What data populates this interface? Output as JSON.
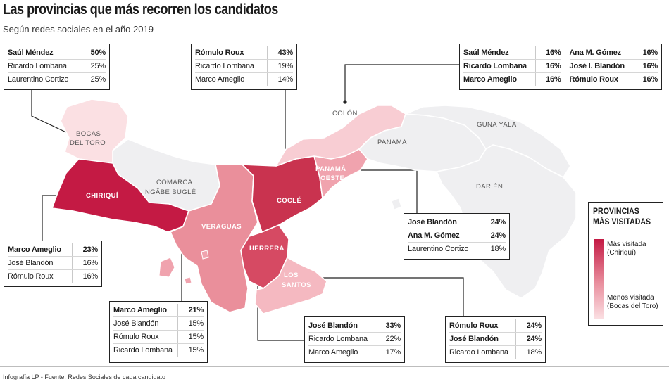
{
  "title": "Las provincias que más recorren los candidatos",
  "subtitle": "Según redes sociales en el año 2019",
  "footer": "Infografía LP - Fuente: Redes Sociales de cada candidato",
  "colors": {
    "most_visited": "#c41a44",
    "least_visited": "#fbe0e3",
    "not_visited": "#efeff1"
  },
  "legend": {
    "title_line1": "PROVINCIAS",
    "title_line2": "MÁS VISITADAS",
    "most_line1": "Más visitada",
    "most_line2": "(Chiriquí)",
    "least_line1": "Menos visitada",
    "least_line2": "(Bocas del Toro)"
  },
  "provinces": {
    "bocas_1": "BOCAS",
    "bocas_2": "DEL TORO",
    "chiriqui": "CHIRIQUÍ",
    "comarca_1": "COMARCA",
    "comarca_2": "NGÄBE BUGLÉ",
    "veraguas": "VERAGUAS",
    "cocle": "COCLÉ",
    "herrera": "HERRERA",
    "los_santos_1": "LOS",
    "los_santos_2": "SANTOS",
    "colon": "COLÓN",
    "panama": "PANAMÁ",
    "panama_oeste_1": "PANAMÁ",
    "panama_oeste_2": "OESTE",
    "guna_yala": "GUNA YALA",
    "darien": "DARIÉN"
  },
  "boxes": {
    "bocas": [
      {
        "name": "Saúl Méndez",
        "pct": "50%"
      },
      {
        "name": "Ricardo Lombana",
        "pct": "25%"
      },
      {
        "name": "Laurentino Cortizo",
        "pct": "25%"
      }
    ],
    "cocle": [
      {
        "name": "Rómulo Roux",
        "pct": "43%"
      },
      {
        "name": "Ricardo Lombana",
        "pct": "19%"
      },
      {
        "name": "Marco Ameglio",
        "pct": "14%"
      }
    ],
    "colon": [
      {
        "name": "Saúl Méndez",
        "pct": "16%",
        "name2": "Ana M. Gómez",
        "pct2": "16%"
      },
      {
        "name": "Ricardo Lombana",
        "pct": "16%",
        "name2": "José I. Blandón",
        "pct2": "16%"
      },
      {
        "name": "Marco Ameglio",
        "pct": "16%",
        "name2": "Rómulo Roux",
        "pct2": "16%"
      }
    ],
    "panama_oeste": [
      {
        "name": "José Blandón",
        "pct": "24%"
      },
      {
        "name": "Ana M. Gómez",
        "pct": "24%"
      },
      {
        "name": "Laurentino Cortizo",
        "pct": "18%"
      }
    ],
    "chiriqui": [
      {
        "name": "Marco Ameglio",
        "pct": "23%"
      },
      {
        "name": "José Blandón",
        "pct": "16%"
      },
      {
        "name": "Rómulo Roux",
        "pct": "16%"
      }
    ],
    "veraguas": [
      {
        "name": "Marco Ameglio",
        "pct": "21%"
      },
      {
        "name": "José Blandón",
        "pct": "15%"
      },
      {
        "name": "Rómulo Roux",
        "pct": "15%"
      },
      {
        "name": "Ricardo Lombana",
        "pct": "15%"
      }
    ],
    "herrera": [
      {
        "name": "José Blandón",
        "pct": "33%"
      },
      {
        "name": "Ricardo Lombana",
        "pct": "22%"
      },
      {
        "name": "Marco Ameglio",
        "pct": "17%"
      }
    ],
    "los_santos": [
      {
        "name": "Rómulo Roux",
        "pct": "24%"
      },
      {
        "name": "José Blandón",
        "pct": "24%"
      },
      {
        "name": "Ricardo Lombana",
        "pct": "18%"
      }
    ]
  }
}
